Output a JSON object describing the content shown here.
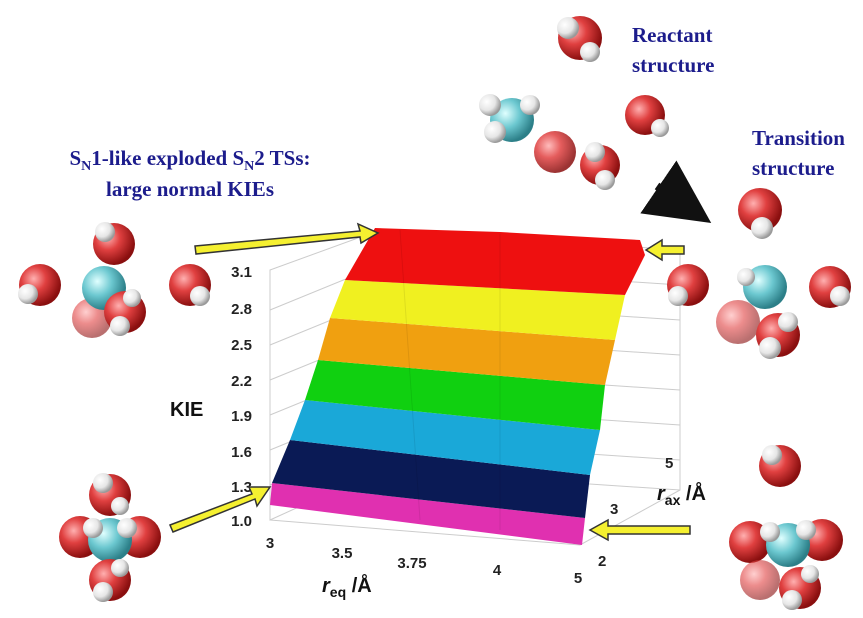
{
  "reactant_label": {
    "line1": "Reactant",
    "line2": "structure"
  },
  "transition_label": {
    "line1": "Transition",
    "line2": "structure"
  },
  "sn1_label": {
    "line1_parts": [
      "S",
      "N",
      "1-like exploded S",
      "N",
      "2 TSs:"
    ],
    "line2": "large normal KIEs"
  },
  "plot": {
    "z_axis_label": "KIE",
    "z_ticks": [
      "1.0",
      "1.3",
      "1.6",
      "1.9",
      "2.2",
      "2.5",
      "2.8",
      "3.1"
    ],
    "req_axis_label": {
      "symbol": "r",
      "subscript": "eq",
      "unit": " /Å"
    },
    "req_ticks": [
      "3",
      "3.5",
      "3.75",
      "4",
      "5"
    ],
    "rax_axis_label": {
      "symbol": "r",
      "subscript": "ax",
      "unit": " /Å"
    },
    "rax_ticks": [
      "2",
      "3",
      "5"
    ]
  }
}
